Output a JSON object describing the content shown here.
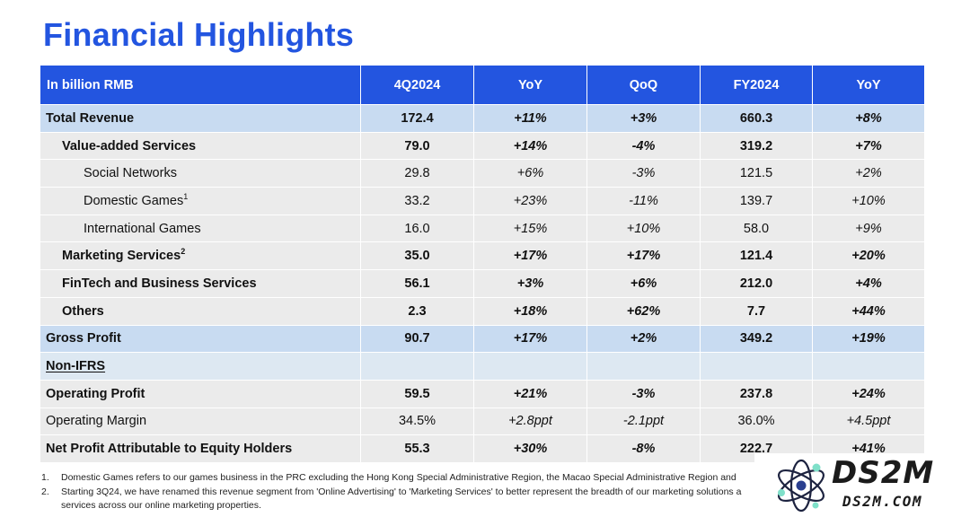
{
  "title": "Financial Highlights",
  "colors": {
    "header": "#2355e0",
    "highlight_row": "#c8dbf1",
    "body_row": "#ebebeb",
    "section_row": "#dde8f2"
  },
  "table": {
    "headers": [
      "In billion RMB",
      "4Q2024",
      "YoY",
      "QoQ",
      "FY2024",
      "YoY"
    ],
    "rows": [
      {
        "label": "Total Revenue",
        "sup": "",
        "v": [
          "172.4",
          "+11%",
          "+3%",
          "660.3",
          "+8%"
        ]
      },
      {
        "label": "Value-added Services",
        "sup": "",
        "v": [
          "79.0",
          "+14%",
          "-4%",
          "319.2",
          "+7%"
        ]
      },
      {
        "label": "Social Networks",
        "sup": "",
        "v": [
          "29.8",
          "+6%",
          "-3%",
          "121.5",
          "+2%"
        ]
      },
      {
        "label": "Domestic Games",
        "sup": "1",
        "v": [
          "33.2",
          "+23%",
          "-11%",
          "139.7",
          "+10%"
        ]
      },
      {
        "label": "International Games",
        "sup": "",
        "v": [
          "16.0",
          "+15%",
          "+10%",
          "58.0",
          "+9%"
        ]
      },
      {
        "label": "Marketing Services",
        "sup": "2",
        "v": [
          "35.0",
          "+17%",
          "+17%",
          "121.4",
          "+20%"
        ]
      },
      {
        "label": "FinTech and Business Services",
        "sup": "",
        "v": [
          "56.1",
          "+3%",
          "+6%",
          "212.0",
          "+4%"
        ]
      },
      {
        "label": "Others",
        "sup": "",
        "v": [
          "2.3",
          "+18%",
          "+62%",
          "7.7",
          "+44%"
        ]
      },
      {
        "label": "Gross Profit",
        "sup": "",
        "v": [
          "90.7",
          "+17%",
          "+2%",
          "349.2",
          "+19%"
        ]
      },
      {
        "label": "Non-IFRS",
        "sup": "",
        "v": [
          "",
          "",
          "",
          "",
          ""
        ]
      },
      {
        "label": "Operating Profit",
        "sup": "",
        "v": [
          "59.5",
          "+21%",
          "-3%",
          "237.8",
          "+24%"
        ]
      },
      {
        "label": "Operating Margin",
        "sup": "",
        "v": [
          "34.5%",
          "+2.8ppt",
          "-2.1ppt",
          "36.0%",
          "+4.5ppt"
        ]
      },
      {
        "label": "Net Profit Attributable to Equity Holders",
        "sup": "",
        "v": [
          "55.3",
          "+30%",
          "-8%",
          "222.7",
          "+41%"
        ]
      }
    ]
  },
  "footnotes": [
    {
      "num": "1.",
      "text": "Domestic Games refers to our games business in the PRC excluding the Hong Kong Special Administrative Region, the Macao Special Administrative Region and"
    },
    {
      "num": "2.",
      "text": "Starting 3Q24, we have renamed this revenue segment from 'Online Advertising' to 'Marketing Services' to better represent the breadth of our marketing solutions a",
      "cont": "services across our online marketing properties."
    }
  ],
  "watermark": {
    "main": "DS2M",
    "sub": "DS2M.COM"
  }
}
